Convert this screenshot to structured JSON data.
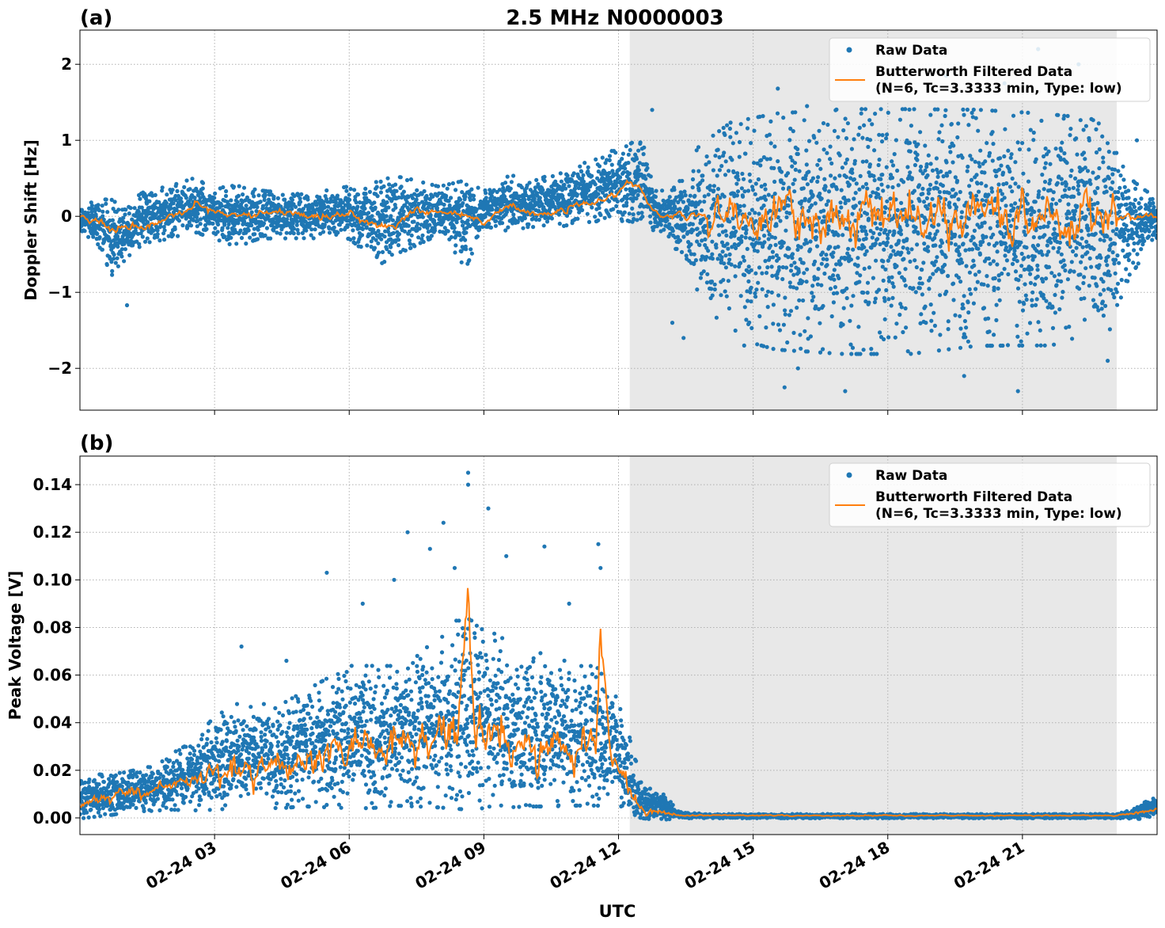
{
  "figure": {
    "title": "2.5 MHz N0000003",
    "xlabel": "UTC"
  },
  "colors": {
    "raw": "#1f77b4",
    "filtered": "#ff7f0e",
    "shade": "#e8e8e8",
    "grid": "#b0b0b0"
  },
  "chart_data": [
    {
      "type": "scatter",
      "panel_label": "(a)",
      "title": "2.5 MHz N0000003",
      "xlabel": "",
      "ylabel": "Doppler Shift [Hz]",
      "xlim_hours": [
        0,
        24
      ],
      "ylim": [
        -2.55,
        2.45
      ],
      "x_ticks": [
        {
          "hour": 3,
          "label": ""
        },
        {
          "hour": 6,
          "label": ""
        },
        {
          "hour": 9,
          "label": ""
        },
        {
          "hour": 12,
          "label": ""
        },
        {
          "hour": 15,
          "label": ""
        },
        {
          "hour": 18,
          "label": ""
        },
        {
          "hour": 21,
          "label": ""
        }
      ],
      "y_ticks": [
        {
          "value": 2,
          "label": "2"
        },
        {
          "value": 1,
          "label": "1"
        },
        {
          "value": 0,
          "label": "0"
        },
        {
          "value": -1,
          "label": "−1"
        },
        {
          "value": -2,
          "label": "−2"
        }
      ],
      "shaded_span_hours": [
        12.25,
        23.1
      ],
      "grid": true,
      "legend_position": "top-right",
      "legend": [
        "Raw Data",
        "Butterworth Filtered Data",
        "(N=6, Tc=3.3333 min, Type: low)"
      ],
      "series": [
        {
          "name": "Raw Data",
          "kind": "scatter",
          "envelope": {
            "hour": [
              0,
              0.5,
              0.7,
              0.9,
              1.2,
              1.5,
              2.0,
              2.5,
              3.0,
              3.5,
              4.0,
              5.0,
              6.0,
              6.7,
              7.2,
              8.0,
              8.6,
              9.0,
              9.6,
              10.0,
              10.7,
              11.0,
              11.6,
              12.0,
              12.3,
              12.6,
              12.8,
              13.2,
              13.8,
              14.5,
              15.5,
              17.0,
              18.5,
              20.0,
              21.5,
              22.5,
              23.0,
              23.3,
              23.7,
              24.0
            ],
            "high": [
              0.12,
              0.18,
              0.15,
              0.15,
              0.2,
              0.3,
              0.35,
              0.45,
              0.35,
              0.35,
              0.3,
              0.25,
              0.35,
              0.45,
              0.45,
              0.35,
              0.4,
              0.3,
              0.5,
              0.4,
              0.55,
              0.55,
              0.8,
              0.8,
              0.9,
              0.9,
              0.3,
              0.3,
              0.8,
              1.05,
              1.15,
              1.2,
              1.2,
              1.2,
              1.15,
              1.1,
              0.95,
              0.45,
              0.3,
              0.2
            ],
            "low": [
              -0.15,
              -0.4,
              -0.75,
              -0.6,
              -0.4,
              -0.3,
              -0.25,
              -0.15,
              -0.25,
              -0.35,
              -0.25,
              -0.25,
              -0.25,
              -0.55,
              -0.4,
              -0.2,
              -0.6,
              -0.1,
              -0.15,
              -0.1,
              -0.1,
              -0.05,
              0.0,
              0.0,
              0.0,
              -0.1,
              -0.15,
              -0.3,
              -0.9,
              -1.4,
              -1.55,
              -1.6,
              -1.6,
              -1.5,
              -1.5,
              -1.45,
              -1.3,
              -0.8,
              -0.45,
              -0.3
            ],
            "sparse_extremes": [
              {
                "hour": 1.05,
                "value": -1.17
              },
              {
                "hour": 12.75,
                "value": 1.4
              },
              {
                "hour": 15.55,
                "value": 1.68
              },
              {
                "hour": 16.2,
                "value": 1.45
              },
              {
                "hour": 15.7,
                "value": -2.25
              },
              {
                "hour": 17.05,
                "value": -2.3
              },
              {
                "hour": 16.0,
                "value": -2.0
              },
              {
                "hour": 19.7,
                "value": -2.1
              },
              {
                "hour": 20.9,
                "value": -2.3
              },
              {
                "hour": 21.35,
                "value": 2.2
              },
              {
                "hour": 22.25,
                "value": 2.0
              },
              {
                "hour": 19.3,
                "value": 1.85
              },
              {
                "hour": 20.6,
                "value": 1.75
              },
              {
                "hour": 22.9,
                "value": -1.9
              },
              {
                "hour": 23.55,
                "value": 1.0
              },
              {
                "hour": 13.45,
                "value": -1.6
              },
              {
                "hour": 13.2,
                "value": -1.4
              },
              {
                "hour": 14.8,
                "value": -1.7
              }
            ]
          }
        },
        {
          "name": "Butterworth Filtered Data",
          "kind": "line",
          "hour": [
            0,
            0.4,
            0.8,
            1.0,
            1.3,
            1.7,
            2.2,
            2.6,
            3.0,
            3.5,
            4.0,
            4.5,
            5.0,
            5.5,
            6.0,
            6.5,
            7.0,
            7.5,
            8.0,
            8.5,
            9.0,
            9.3,
            9.6,
            10.0,
            10.5,
            11.0,
            11.5,
            11.8,
            12.0,
            12.2,
            12.5,
            12.8,
            13.0,
            13.5,
            14.0,
            14.5,
            24.0
          ],
          "value": [
            0.0,
            -0.05,
            -0.2,
            -0.15,
            -0.15,
            -0.1,
            0.0,
            0.15,
            0.05,
            0.02,
            0.05,
            0.05,
            0.0,
            0.0,
            0.05,
            -0.1,
            -0.15,
            0.1,
            0.05,
            0.05,
            -0.1,
            0.05,
            0.15,
            0.05,
            0.0,
            0.15,
            0.2,
            0.25,
            0.3,
            0.45,
            0.35,
            0.05,
            0.0,
            0.02,
            0.0,
            0.0,
            0.0
          ],
          "noise_after_hour": 14.0,
          "noise_amplitude": 0.3
        }
      ]
    },
    {
      "type": "scatter",
      "panel_label": "(b)",
      "title": "",
      "xlabel": "UTC",
      "ylabel": "Peak Voltage [V]",
      "xlim_hours": [
        0,
        24
      ],
      "ylim": [
        -0.007,
        0.152
      ],
      "x_ticks": [
        {
          "hour": 3,
          "label": "02-24 03"
        },
        {
          "hour": 6,
          "label": "02-24 06"
        },
        {
          "hour": 9,
          "label": "02-24 09"
        },
        {
          "hour": 12,
          "label": "02-24 12"
        },
        {
          "hour": 15,
          "label": "02-24 15"
        },
        {
          "hour": 18,
          "label": "02-24 18"
        },
        {
          "hour": 21,
          "label": "02-24 21"
        }
      ],
      "y_ticks": [
        {
          "value": 0.14,
          "label": "0.14"
        },
        {
          "value": 0.12,
          "label": "0.12"
        },
        {
          "value": 0.1,
          "label": "0.10"
        },
        {
          "value": 0.08,
          "label": "0.08"
        },
        {
          "value": 0.06,
          "label": "0.06"
        },
        {
          "value": 0.04,
          "label": "0.04"
        },
        {
          "value": 0.02,
          "label": "0.02"
        },
        {
          "value": 0.0,
          "label": "0.00"
        }
      ],
      "shaded_span_hours": [
        12.25,
        23.1
      ],
      "grid": true,
      "legend_position": "top-right",
      "legend": [
        "Raw Data",
        "Butterworth Filtered Data",
        "(N=6, Tc=3.3333 min, Type: low)"
      ],
      "series": [
        {
          "name": "Raw Data",
          "kind": "scatter",
          "envelope": {
            "hour": [
              0,
              0.5,
              1.0,
              1.5,
              2.0,
              2.5,
              3.0,
              3.5,
              4.0,
              4.5,
              5.0,
              5.5,
              6.0,
              6.5,
              7.0,
              7.5,
              8.0,
              8.5,
              9.0,
              9.5,
              10.0,
              10.5,
              11.0,
              11.5,
              11.9,
              12.2,
              12.5,
              12.8,
              13.0,
              13.3,
              13.6,
              14.0,
              23.1,
              23.4,
              23.7,
              24.0
            ],
            "high": [
              0.018,
              0.017,
              0.018,
              0.02,
              0.025,
              0.03,
              0.04,
              0.045,
              0.045,
              0.045,
              0.05,
              0.055,
              0.06,
              0.06,
              0.06,
              0.065,
              0.07,
              0.08,
              0.075,
              0.07,
              0.065,
              0.065,
              0.06,
              0.06,
              0.05,
              0.035,
              0.015,
              0.01,
              0.01,
              0.003,
              0.002,
              0.0015,
              0.0015,
              0.003,
              0.006,
              0.009
            ],
            "low": [
              0.001,
              0.002,
              0.003,
              0.004,
              0.005,
              0.005,
              0.006,
              0.007,
              0.007,
              0.007,
              0.008,
              0.008,
              0.008,
              0.008,
              0.009,
              0.009,
              0.009,
              0.009,
              0.009,
              0.009,
              0.009,
              0.009,
              0.009,
              0.009,
              0.008,
              0.005,
              0.001,
              0.0,
              0.0,
              0.0,
              0.0,
              0.0,
              0.0,
              0.0,
              0.0,
              0.001
            ],
            "sparse_extremes": [
              {
                "hour": 8.65,
                "value": 0.145
              },
              {
                "hour": 8.65,
                "value": 0.14
              },
              {
                "hour": 8.1,
                "value": 0.124
              },
              {
                "hour": 7.3,
                "value": 0.12
              },
              {
                "hour": 9.1,
                "value": 0.13
              },
              {
                "hour": 7.8,
                "value": 0.113
              },
              {
                "hour": 11.55,
                "value": 0.115
              },
              {
                "hour": 5.5,
                "value": 0.103
              },
              {
                "hour": 10.35,
                "value": 0.114
              },
              {
                "hour": 9.5,
                "value": 0.11
              },
              {
                "hour": 8.35,
                "value": 0.105
              },
              {
                "hour": 7.0,
                "value": 0.1
              },
              {
                "hour": 3.6,
                "value": 0.072
              },
              {
                "hour": 4.6,
                "value": 0.066
              },
              {
                "hour": 6.3,
                "value": 0.09
              },
              {
                "hour": 10.9,
                "value": 0.09
              },
              {
                "hour": 11.6,
                "value": 0.105
              }
            ]
          }
        },
        {
          "name": "Butterworth Filtered Data",
          "kind": "line",
          "hour": [
            0,
            0.5,
            1.0,
            1.5,
            2.0,
            2.5,
            3.0,
            3.5,
            4.0,
            4.5,
            5.0,
            5.5,
            6.0,
            6.5,
            7.0,
            7.5,
            8.0,
            8.4,
            8.65,
            8.8,
            9.0,
            9.5,
            10.0,
            10.5,
            11.0,
            11.5,
            11.6,
            11.8,
            12.0,
            12.3,
            12.6,
            13.0,
            13.5,
            14.0,
            23.1,
            23.5,
            24.0
          ],
          "value": [
            0.005,
            0.007,
            0.01,
            0.011,
            0.013,
            0.016,
            0.02,
            0.022,
            0.02,
            0.022,
            0.02,
            0.028,
            0.03,
            0.033,
            0.03,
            0.033,
            0.035,
            0.04,
            0.093,
            0.035,
            0.038,
            0.034,
            0.03,
            0.03,
            0.028,
            0.03,
            0.074,
            0.03,
            0.02,
            0.01,
            0.003,
            0.002,
            0.001,
            0.001,
            0.001,
            0.002,
            0.004
          ],
          "noise_amplitude": 0.008
        }
      ]
    }
  ]
}
